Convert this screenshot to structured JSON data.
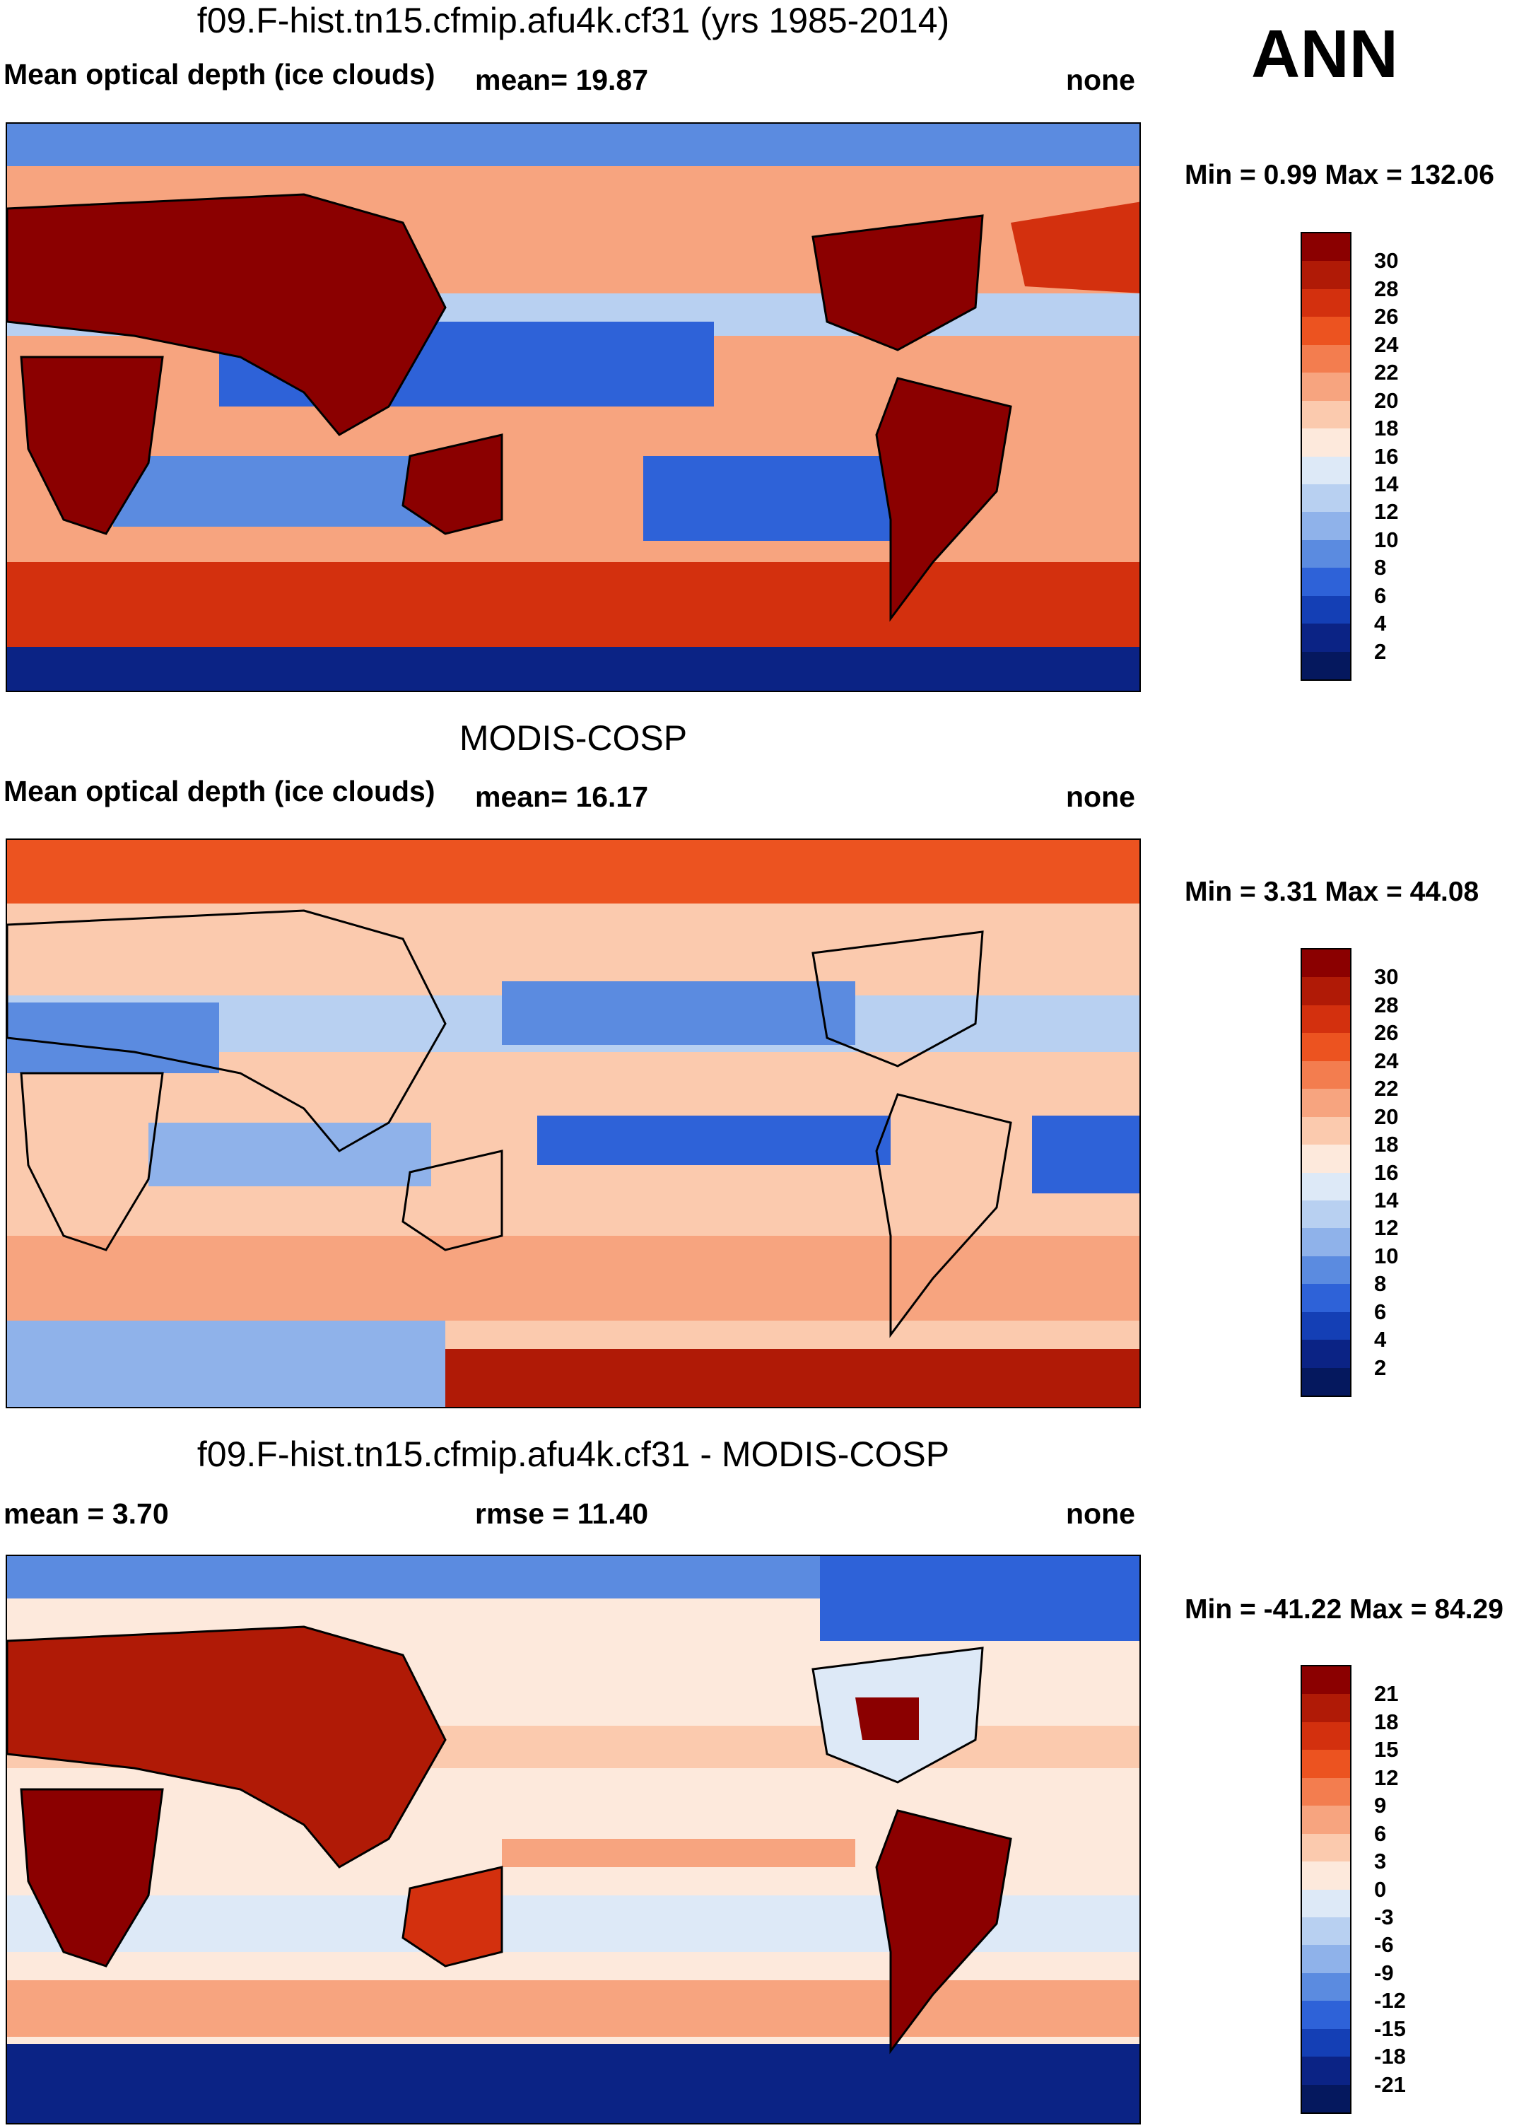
{
  "season": "ANN",
  "chart_data": [
    {
      "type": "heatmap",
      "title": "f09.F-hist.tn15.cfmip.afu4k.cf31 (yrs 1985-2014)",
      "left_label": "Mean optical depth (ice clouds)",
      "mean_label": "mean=  19.87",
      "mean": 19.87,
      "units": "none",
      "min_max_label": "Min =   0.99 Max = 132.06",
      "min": 0.99,
      "max": 132.06,
      "colorbar_ticks": [
        "30",
        "28",
        "26",
        "24",
        "22",
        "20",
        "18",
        "16",
        "14",
        "12",
        "10",
        "8",
        "6",
        "4",
        "2"
      ],
      "colors": [
        "#8b0000",
        "#b01a06",
        "#d3300e",
        "#ec5320",
        "#f37d4f",
        "#f7a47f",
        "#fbcaae",
        "#fde9dc",
        "#dde9f7",
        "#b8d0f1",
        "#8fb2ea",
        "#5b8be0",
        "#2e62d8",
        "#143fb5",
        "#0b2385",
        "#05185e"
      ]
    },
    {
      "type": "heatmap",
      "title": "MODIS-COSP",
      "left_label": "Mean optical depth (ice clouds)",
      "mean_label": "mean=  16.17",
      "mean": 16.17,
      "units": "none",
      "min_max_label": "Min =   3.31 Max =  44.08",
      "min": 3.31,
      "max": 44.08,
      "colorbar_ticks": [
        "30",
        "28",
        "26",
        "24",
        "22",
        "20",
        "18",
        "16",
        "14",
        "12",
        "10",
        "8",
        "6",
        "4",
        "2"
      ],
      "colors": [
        "#8b0000",
        "#b01a06",
        "#d3300e",
        "#ec5320",
        "#f37d4f",
        "#f7a47f",
        "#fbcaae",
        "#fde9dc",
        "#dde9f7",
        "#b8d0f1",
        "#8fb2ea",
        "#5b8be0",
        "#2e62d8",
        "#143fb5",
        "#0b2385",
        "#05185e"
      ]
    },
    {
      "type": "heatmap",
      "title": "f09.F-hist.tn15.cfmip.afu4k.cf31 - MODIS-COSP",
      "left_label": "mean =   3.70",
      "mean": 3.7,
      "mid_label": "rmse =  11.40",
      "rmse": 11.4,
      "units": "none",
      "min_max_label": "Min = -41.22 Max =  84.29",
      "min": -41.22,
      "max": 84.29,
      "colorbar_ticks": [
        "21",
        "18",
        "15",
        "12",
        "9",
        "6",
        "3",
        "0",
        "-3",
        "-6",
        "-9",
        "-12",
        "-15",
        "-18",
        "-21"
      ],
      "colors": [
        "#8b0000",
        "#b01a06",
        "#d3300e",
        "#ec5320",
        "#f37d4f",
        "#f7a47f",
        "#fbcaae",
        "#fde9dc",
        "#dde9f7",
        "#b8d0f1",
        "#8fb2ea",
        "#5b8be0",
        "#2e62d8",
        "#143fb5",
        "#0b2385",
        "#05185e"
      ]
    }
  ]
}
